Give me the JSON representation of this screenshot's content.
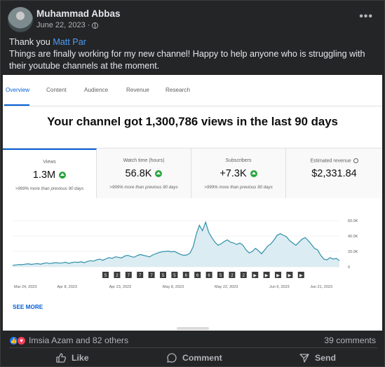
{
  "post": {
    "author": "Muhammad Abbas",
    "date": "June 22, 2023",
    "separator": "·",
    "privacy_icon": "globe-icon",
    "more_label": "•••",
    "text_prefix": "Thank you ",
    "mention": "Matt Par",
    "text_body": "Things are finally working for my new channel! Happy to help anyone who is struggling with their youtube channels at the moment."
  },
  "analytics": {
    "tabs": [
      "Overview",
      "Content",
      "Audience",
      "Revenue",
      "Research"
    ],
    "active_tab": "Overview",
    "headline": "Your channel got 1,300,786 views in the last 90 days",
    "cards": [
      {
        "label": "Views",
        "value": "1.3M",
        "sub": ">999% more than previous 90 days"
      },
      {
        "label": "Watch time (hours)",
        "value": "56.8K",
        "sub": ">999% more than previous 90 days"
      },
      {
        "label": "Subscribers",
        "value": "+7.3K",
        "sub": ">999% more than previous 90 days"
      },
      {
        "label": "Estimated revenue",
        "value": "$2,331.84",
        "sub": ""
      }
    ],
    "see_more": "SEE MORE"
  },
  "chart_data": {
    "type": "area",
    "x_tick_labels": [
      "Mar 24, 2023",
      "Apr 8, 2023",
      "Apr 23, 2023",
      "May 8, 2023",
      "May 22, 2023",
      "Jun 6, 2023",
      "Jun 21, 2023"
    ],
    "y_tick_labels": [
      "60.0K",
      "40.0K",
      "20.0K",
      "0"
    ],
    "ylim": [
      0,
      60000
    ],
    "values": [
      2000,
      2500,
      3000,
      2800,
      3500,
      4000,
      3200,
      3800,
      4200,
      3500,
      4500,
      5200,
      4300,
      5000,
      5500,
      4800,
      5200,
      6000,
      4500,
      5500,
      6200,
      5800,
      6500,
      5500,
      7000,
      8000,
      7500,
      9000,
      10000,
      8500,
      10500,
      12000,
      11000,
      13000,
      12500,
      11500,
      14000,
      15000,
      13500,
      12500,
      14500,
      16000,
      15000,
      14000,
      13000,
      15500,
      17000,
      18500,
      19500,
      20000,
      20500,
      19500,
      20000,
      18000,
      16000,
      15000,
      15500,
      18000,
      26000,
      42000,
      54000,
      47000,
      58000,
      45000,
      38000,
      32000,
      28000,
      30000,
      33000,
      35000,
      32000,
      31000,
      29000,
      31000,
      28000,
      22000,
      18000,
      20000,
      24000,
      21000,
      17000,
      22000,
      27000,
      30000,
      35000,
      41000,
      43000,
      41000,
      39000,
      34000,
      31000,
      28000,
      32000,
      36000,
      38000,
      34000,
      29000,
      24000,
      22000,
      15000,
      10000,
      9000,
      12000,
      10000,
      11000,
      8000
    ],
    "markers": [
      "5",
      "2",
      "7",
      "7",
      "7",
      "5",
      "5",
      "6",
      "6",
      "6",
      "5",
      "2",
      "2",
      "▶",
      "▶",
      "▶",
      "▶",
      "▶"
    ],
    "fill_color": "#dbecf2",
    "line_color": "#2e8fa9"
  },
  "footer": {
    "reactions_label": "Imsia Azam and 82 others",
    "comments_label": "39 comments",
    "like_label": "Like",
    "comment_label": "Comment",
    "send_label": "Send"
  }
}
